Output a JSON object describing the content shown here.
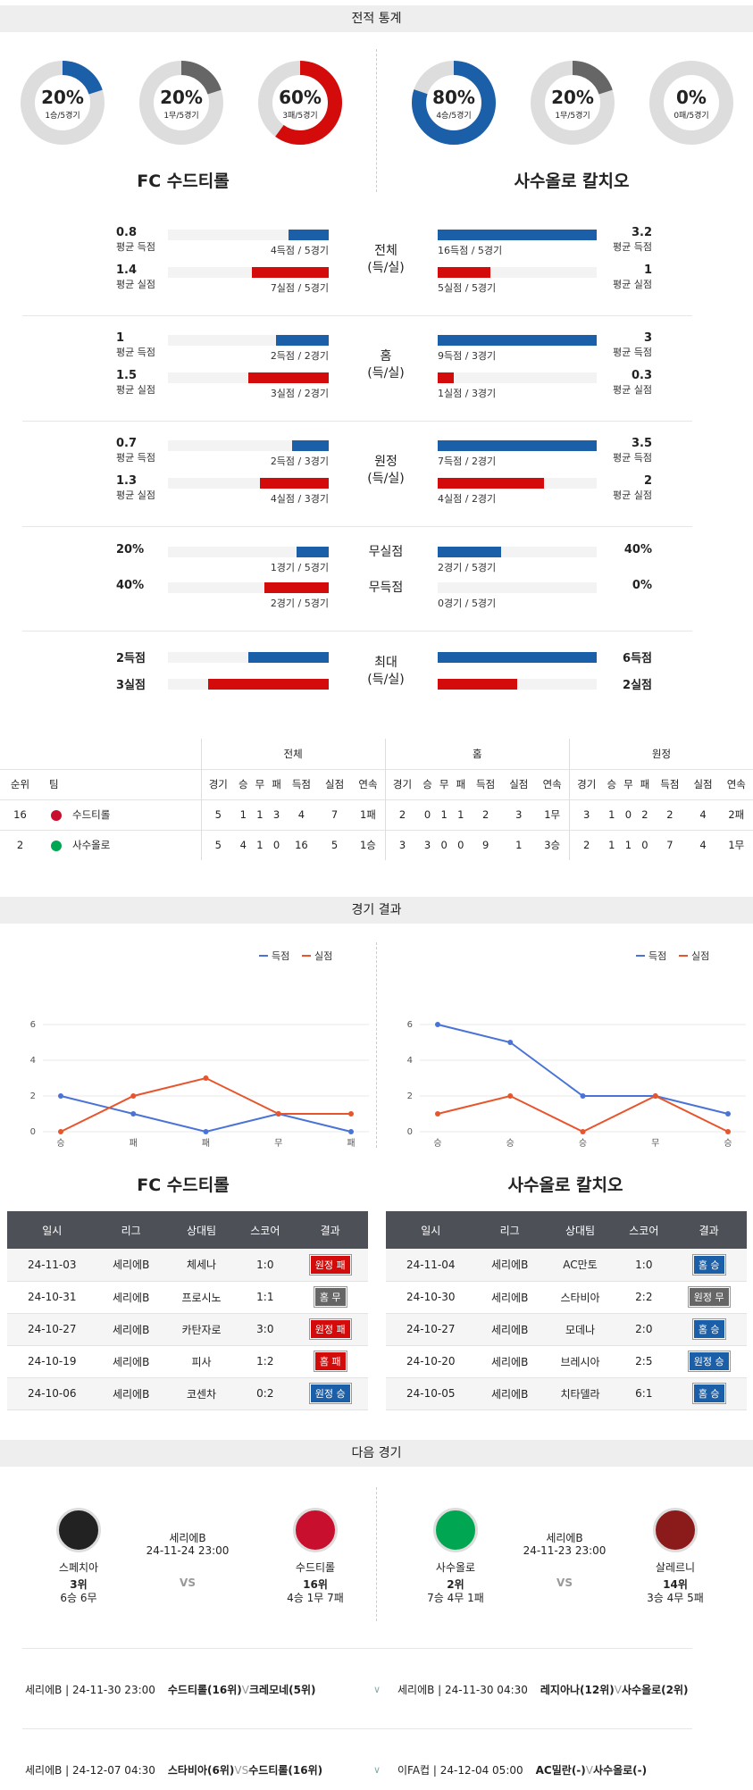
{
  "sections": {
    "stats": "전적 통계",
    "results": "경기 결과",
    "next": "다음 경기"
  },
  "teams": {
    "home": "FC 수드티롤",
    "away": "사수올로 칼치오"
  },
  "donuts": [
    {
      "pct": "20%",
      "sub": "1승/5경기",
      "value": 0.2,
      "color": "#1a5fa8"
    },
    {
      "pct": "20%",
      "sub": "1무/5경기",
      "value": 0.2,
      "color": "#666666"
    },
    {
      "pct": "60%",
      "sub": "3패/5경기",
      "value": 0.6,
      "color": "#d40b0b"
    },
    {
      "pct": "80%",
      "sub": "4승/5경기",
      "value": 0.8,
      "color": "#1a5fa8"
    },
    {
      "pct": "20%",
      "sub": "1무/5경기",
      "value": 0.2,
      "color": "#666666"
    },
    {
      "pct": "0%",
      "sub": "0패/5경기",
      "value": 0.0,
      "color": "#d40b0b"
    }
  ],
  "stat_groups": [
    {
      "center": [
        "전체",
        "(득/실)"
      ],
      "rows": [
        {
          "lnum": "0.8",
          "llbl": "평균 득점",
          "lbar": "4득점 / 5경기",
          "lval": 0.25,
          "rnum": "3.2",
          "rlbl": "평균 득점",
          "rbar": "16득점 / 5경기",
          "rval": 1.0,
          "color": "blue"
        },
        {
          "lnum": "1.4",
          "llbl": "평균 실점",
          "lbar": "7실점 / 5경기",
          "lval": 0.48,
          "rnum": "1",
          "rlbl": "평균 실점",
          "rbar": "5실점 / 5경기",
          "rval": 0.33,
          "color": "red"
        }
      ]
    },
    {
      "center": [
        "홈",
        "(득/실)"
      ],
      "rows": [
        {
          "lnum": "1",
          "llbl": "평균 득점",
          "lbar": "2득점 / 2경기",
          "lval": 0.33,
          "rnum": "3",
          "rlbl": "평균 득점",
          "rbar": "9득점 / 3경기",
          "rval": 1.0,
          "color": "blue"
        },
        {
          "lnum": "1.5",
          "llbl": "평균 실점",
          "lbar": "3실점 / 2경기",
          "lval": 0.5,
          "rnum": "0.3",
          "rlbl": "평균 실점",
          "rbar": "1실점 / 3경기",
          "rval": 0.1,
          "color": "red"
        }
      ]
    },
    {
      "center": [
        "원정",
        "(득/실)"
      ],
      "rows": [
        {
          "lnum": "0.7",
          "llbl": "평균 득점",
          "lbar": "2득점 / 3경기",
          "lval": 0.23,
          "rnum": "3.5",
          "rlbl": "평균 득점",
          "rbar": "7득점 / 2경기",
          "rval": 1.0,
          "color": "blue"
        },
        {
          "lnum": "1.3",
          "llbl": "평균 실점",
          "lbar": "4실점 / 3경기",
          "lval": 0.43,
          "rnum": "2",
          "rlbl": "평균 실점",
          "rbar": "4실점 / 2경기",
          "rval": 0.67,
          "color": "red"
        }
      ]
    }
  ],
  "clean": [
    {
      "center": "무실점",
      "lnum": "20%",
      "lbar": "1경기 / 5경기",
      "lval": 0.2,
      "rnum": "40%",
      "rbar": "2경기 / 5경기",
      "rval": 0.4,
      "color": "blue"
    },
    {
      "center": "무득점",
      "lnum": "40%",
      "lbar": "2경기 / 5경기",
      "lval": 0.4,
      "rnum": "0%",
      "rbar": "0경기 / 5경기",
      "rval": 0.0,
      "color": "red"
    }
  ],
  "max": {
    "center": [
      "최대",
      "(득/실)"
    ],
    "rows": [
      {
        "lnum": "2득점",
        "lval": 0.5,
        "rnum": "6득점",
        "rval": 1.0,
        "color": "blue"
      },
      {
        "lnum": "3실점",
        "lval": 0.75,
        "rnum": "2실점",
        "rval": 0.5,
        "color": "red"
      }
    ]
  },
  "standings": {
    "groups": [
      "전체",
      "홈",
      "원정"
    ],
    "cols": [
      "경기",
      "승",
      "무",
      "패",
      "득점",
      "실점",
      "연속"
    ],
    "rank_h": "순위",
    "team_h": "팀",
    "rows": [
      {
        "rank": "16",
        "team": "수드티롤",
        "logo": "#c8102e",
        "all": [
          "5",
          "1",
          "1",
          "3",
          "4",
          "7",
          "1패"
        ],
        "home": [
          "2",
          "0",
          "1",
          "1",
          "2",
          "3",
          "1무"
        ],
        "away": [
          "3",
          "1",
          "0",
          "2",
          "2",
          "4",
          "2패"
        ]
      },
      {
        "rank": "2",
        "team": "사수올로",
        "logo": "#00a651",
        "all": [
          "5",
          "4",
          "1",
          "0",
          "16",
          "5",
          "1승"
        ],
        "home": [
          "3",
          "3",
          "0",
          "0",
          "9",
          "1",
          "3승"
        ],
        "away": [
          "2",
          "1",
          "1",
          "0",
          "7",
          "4",
          "1무"
        ]
      }
    ]
  },
  "legend": {
    "scored": "득점",
    "conceded": "실점"
  },
  "chart_data": [
    {
      "type": "line",
      "x": [
        "승",
        "패",
        "패",
        "무",
        "패"
      ],
      "series": [
        {
          "name": "득점",
          "values": [
            2,
            1,
            0,
            1,
            0
          ]
        },
        {
          "name": "실점",
          "values": [
            0,
            2,
            3,
            1,
            1
          ]
        }
      ],
      "ylim": [
        0,
        6
      ],
      "yticks": [
        0,
        2,
        4,
        6
      ]
    },
    {
      "type": "line",
      "x": [
        "승",
        "승",
        "승",
        "무",
        "승"
      ],
      "series": [
        {
          "name": "득점",
          "values": [
            6,
            5,
            2,
            2,
            1
          ]
        },
        {
          "name": "실점",
          "values": [
            1,
            2,
            0,
            2,
            0
          ]
        }
      ],
      "ylim": [
        0,
        6
      ],
      "yticks": [
        0,
        2,
        4,
        6
      ]
    }
  ],
  "chart_colors": {
    "scored": "#4a73d8",
    "conceded": "#e8542c"
  },
  "results_header": [
    "일시",
    "리그",
    "상대팀",
    "스코어",
    "결과"
  ],
  "results_home": [
    {
      "date": "24-11-03",
      "league": "세리에B",
      "opp": "체세나",
      "score": "1:0",
      "res": "원정 패",
      "color": "#d40b0b"
    },
    {
      "date": "24-10-31",
      "league": "세리에B",
      "opp": "프로시노",
      "score": "1:1",
      "res": "홈 무",
      "color": "#666666"
    },
    {
      "date": "24-10-27",
      "league": "세리에B",
      "opp": "카탄자로",
      "score": "3:0",
      "res": "원정 패",
      "color": "#d40b0b"
    },
    {
      "date": "24-10-19",
      "league": "세리에B",
      "opp": "피사",
      "score": "1:2",
      "res": "홈 패",
      "color": "#d40b0b"
    },
    {
      "date": "24-10-06",
      "league": "세리에B",
      "opp": "코센차",
      "score": "0:2",
      "res": "원정 승",
      "color": "#1a5fa8"
    }
  ],
  "results_away": [
    {
      "date": "24-11-04",
      "league": "세리에B",
      "opp": "AC만토",
      "score": "1:0",
      "res": "홈 승",
      "color": "#1a5fa8"
    },
    {
      "date": "24-10-30",
      "league": "세리에B",
      "opp": "스타비아",
      "score": "2:2",
      "res": "원정 무",
      "color": "#666666"
    },
    {
      "date": "24-10-27",
      "league": "세리에B",
      "opp": "모데나",
      "score": "2:0",
      "res": "홈 승",
      "color": "#1a5fa8"
    },
    {
      "date": "24-10-20",
      "league": "세리에B",
      "opp": "브레시아",
      "score": "2:5",
      "res": "원정 승",
      "color": "#1a5fa8"
    },
    {
      "date": "24-10-05",
      "league": "세리에B",
      "opp": "치타델라",
      "score": "6:1",
      "res": "홈 승",
      "color": "#1a5fa8"
    }
  ],
  "next": [
    {
      "league": "세리에B",
      "datetime": "24-11-24 23:00",
      "vs": "VS",
      "t1": {
        "name": "스페치아",
        "rank": "3위",
        "record": "6승 6무",
        "logo": "#222222"
      },
      "t2": {
        "name": "수드티롤",
        "rank": "16위",
        "record": "4승 1무 7패",
        "logo": "#c8102e"
      }
    },
    {
      "league": "세리에B",
      "datetime": "24-11-23 23:00",
      "vs": "VS",
      "t1": {
        "name": "사수올로",
        "rank": "2위",
        "record": "7승 4무 1패",
        "logo": "#00a651"
      },
      "t2": {
        "name": "살레르니",
        "rank": "14위",
        "record": "3승 4무 5패",
        "logo": "#8b1a1a"
      }
    }
  ],
  "upcoming": [
    {
      "left": {
        "info": "세리에B | 24-11-30 23:00",
        "a": "수드티롤(16위)",
        "vs": "V",
        "b": "크레모네(5위)"
      },
      "right": {
        "info": "세리에B | 24-11-30 04:30",
        "a": "레지아나(12위)",
        "vs": "V",
        "b": "사수올로(2위)"
      }
    },
    {
      "left": {
        "info": "세리에B | 24-12-07 04:30",
        "a": "스타비아(6위)",
        "vs": "VS",
        "b": "수드티롤(16위)"
      },
      "right": {
        "info": "이FA컵 | 24-12-04 05:00",
        "a": "AC밀란(-)",
        "vs": "V",
        "b": "사수올로(-)"
      }
    }
  ]
}
